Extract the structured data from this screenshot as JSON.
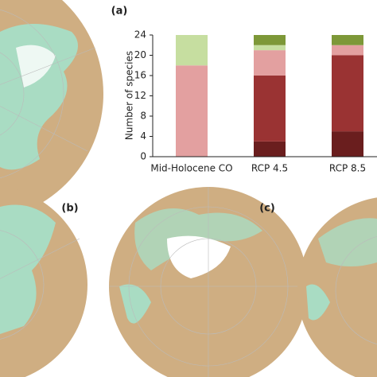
{
  "chart_data": {
    "type": "bar",
    "stacked": true,
    "categories": [
      "Mid-Holocene CO",
      "RCP 4.5",
      "RCP 8.5"
    ],
    "y_label": "Number of species",
    "series": [
      {
        "color": "#6a1e1e",
        "values": [
          0,
          3,
          5
        ]
      },
      {
        "color": "#9a3333",
        "values": [
          0,
          13,
          15
        ]
      },
      {
        "color": "#e3a0a0",
        "values": [
          18,
          5,
          2
        ]
      },
      {
        "color": "#c6dea0",
        "values": [
          6,
          1,
          0
        ]
      },
      {
        "color": "#7d9838",
        "values": [
          0,
          2,
          2
        ]
      }
    ],
    "ylim": [
      0,
      24
    ],
    "yticks": [
      0,
      4,
      8,
      12,
      16,
      20,
      24
    ],
    "grid": false
  },
  "panel_labels": [
    "(a)",
    "(b)",
    "(c)"
  ]
}
